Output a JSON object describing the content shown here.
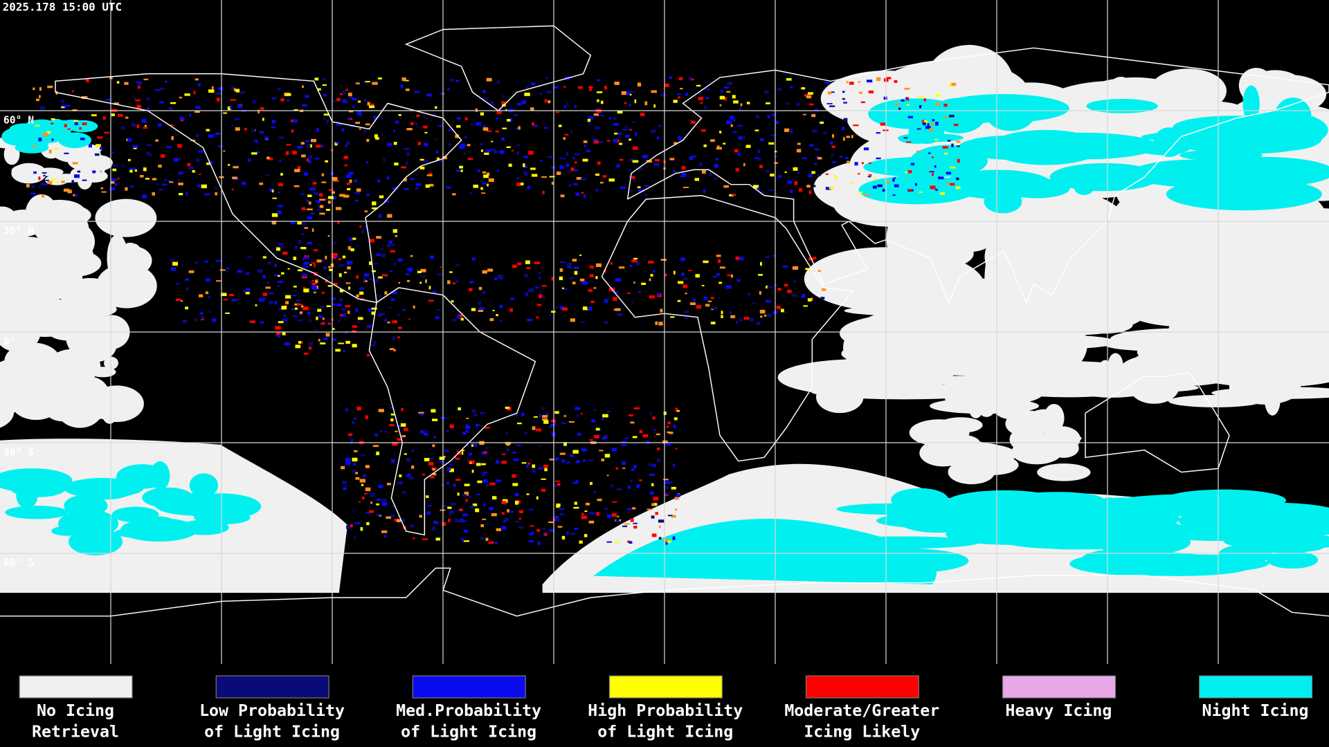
{
  "timestamp": "2025.178 15:00 UTC",
  "latitude_labels": [
    "60° N",
    "30° N",
    "0°",
    "30° S",
    "60° S"
  ],
  "legend": [
    {
      "color": "#f0f0f0",
      "label_lines": [
        "No Icing",
        "Retrieval"
      ]
    },
    {
      "color": "#0a0a78",
      "label_lines": [
        "Low Probability",
        "of Light Icing"
      ]
    },
    {
      "color": "#0a0aee",
      "label_lines": [
        "Med.Probability",
        "of Light Icing"
      ]
    },
    {
      "color": "#ffff00",
      "label_lines": [
        "High Probability",
        "of Light Icing"
      ]
    },
    {
      "color": "#ff0000",
      "label_lines": [
        "Moderate/Greater",
        "Icing Likely"
      ]
    },
    {
      "color": "#e8a8e8",
      "label_lines": [
        "Heavy Icing",
        ""
      ]
    },
    {
      "color": "#00f0f0",
      "label_lines": [
        "Night Icing",
        ""
      ]
    }
  ]
}
